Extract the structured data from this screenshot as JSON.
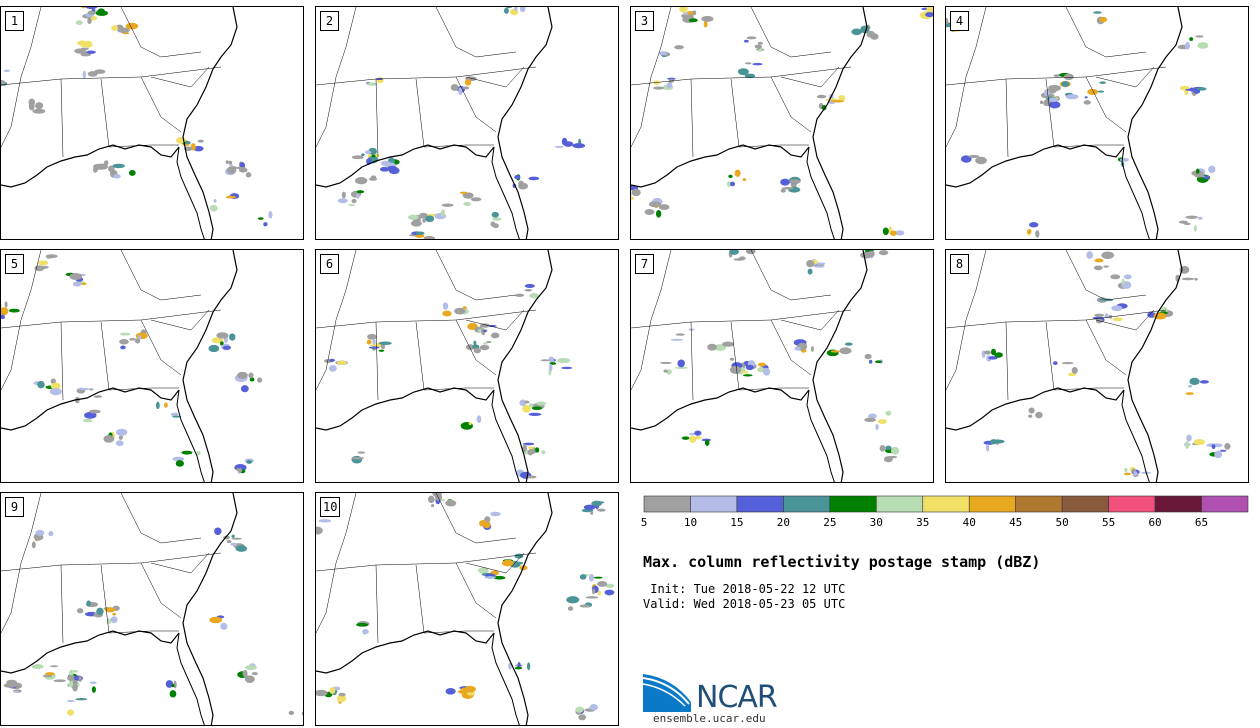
{
  "title": "Max. column reflectivity postage stamp (dBZ)",
  "init_line": " Init: Tue 2018-05-22 12 UTC",
  "valid_line": "Valid: Wed 2018-05-23 05 UTC",
  "members": [
    "1",
    "2",
    "3",
    "4",
    "5",
    "6",
    "7",
    "8",
    "9",
    "10"
  ],
  "colorbar": {
    "ticks": [
      "5",
      "10",
      "15",
      "20",
      "25",
      "30",
      "35",
      "40",
      "45",
      "50",
      "55",
      "60",
      "65"
    ],
    "colors": [
      "#a0a0a0",
      "#b4bde8",
      "#5560d8",
      "#4a9498",
      "#008000",
      "#b8dcb4",
      "#f0e068",
      "#e8a820",
      "#b07830",
      "#8a5a3c",
      "#f0507c",
      "#6a1838",
      "#b050b0"
    ]
  },
  "logo": {
    "name": "NCAR",
    "url": "ensemble.ucar.edu",
    "icon": "ncar-logo-icon"
  }
}
